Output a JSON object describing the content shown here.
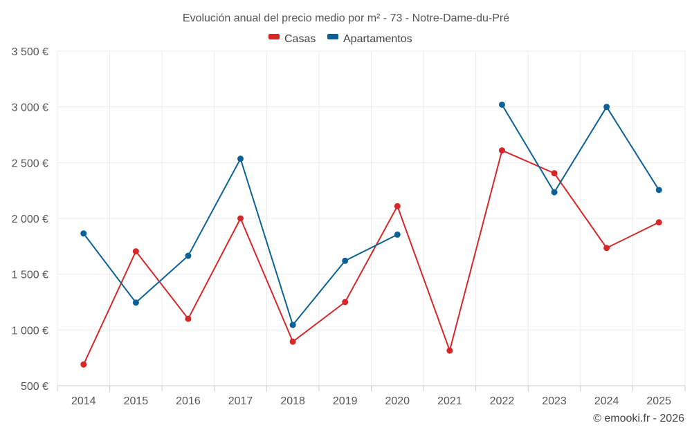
{
  "chart_data": {
    "type": "line",
    "title": "Evolución anual del precio medio por m² - 73 - Notre-Dame-du-Pré",
    "categories": [
      "2014",
      "2015",
      "2016",
      "2017",
      "2018",
      "2019",
      "2020",
      "2021",
      "2022",
      "2023",
      "2024",
      "2025"
    ],
    "y_ticks": [
      500,
      1000,
      1500,
      2000,
      2500,
      3000,
      3500
    ],
    "y_tick_labels": [
      "500 €",
      "1 000 €",
      "1 500 €",
      "2 000 €",
      "2 500 €",
      "3 000 €",
      "3 500 €"
    ],
    "ylim": [
      500,
      3500
    ],
    "grid": true,
    "legend_position": "top-center",
    "series": [
      {
        "name": "Casas",
        "color": "#d62728",
        "values": [
          690,
          1705,
          1100,
          2000,
          895,
          1250,
          2110,
          815,
          2610,
          2405,
          1735,
          1965
        ]
      },
      {
        "name": "Apartamentos",
        "color": "#0b6196",
        "values": [
          1865,
          1245,
          1665,
          2535,
          1045,
          1620,
          1855,
          null,
          3020,
          2235,
          3000,
          2255
        ]
      }
    ]
  },
  "credit": "© emooki.fr - 2026"
}
